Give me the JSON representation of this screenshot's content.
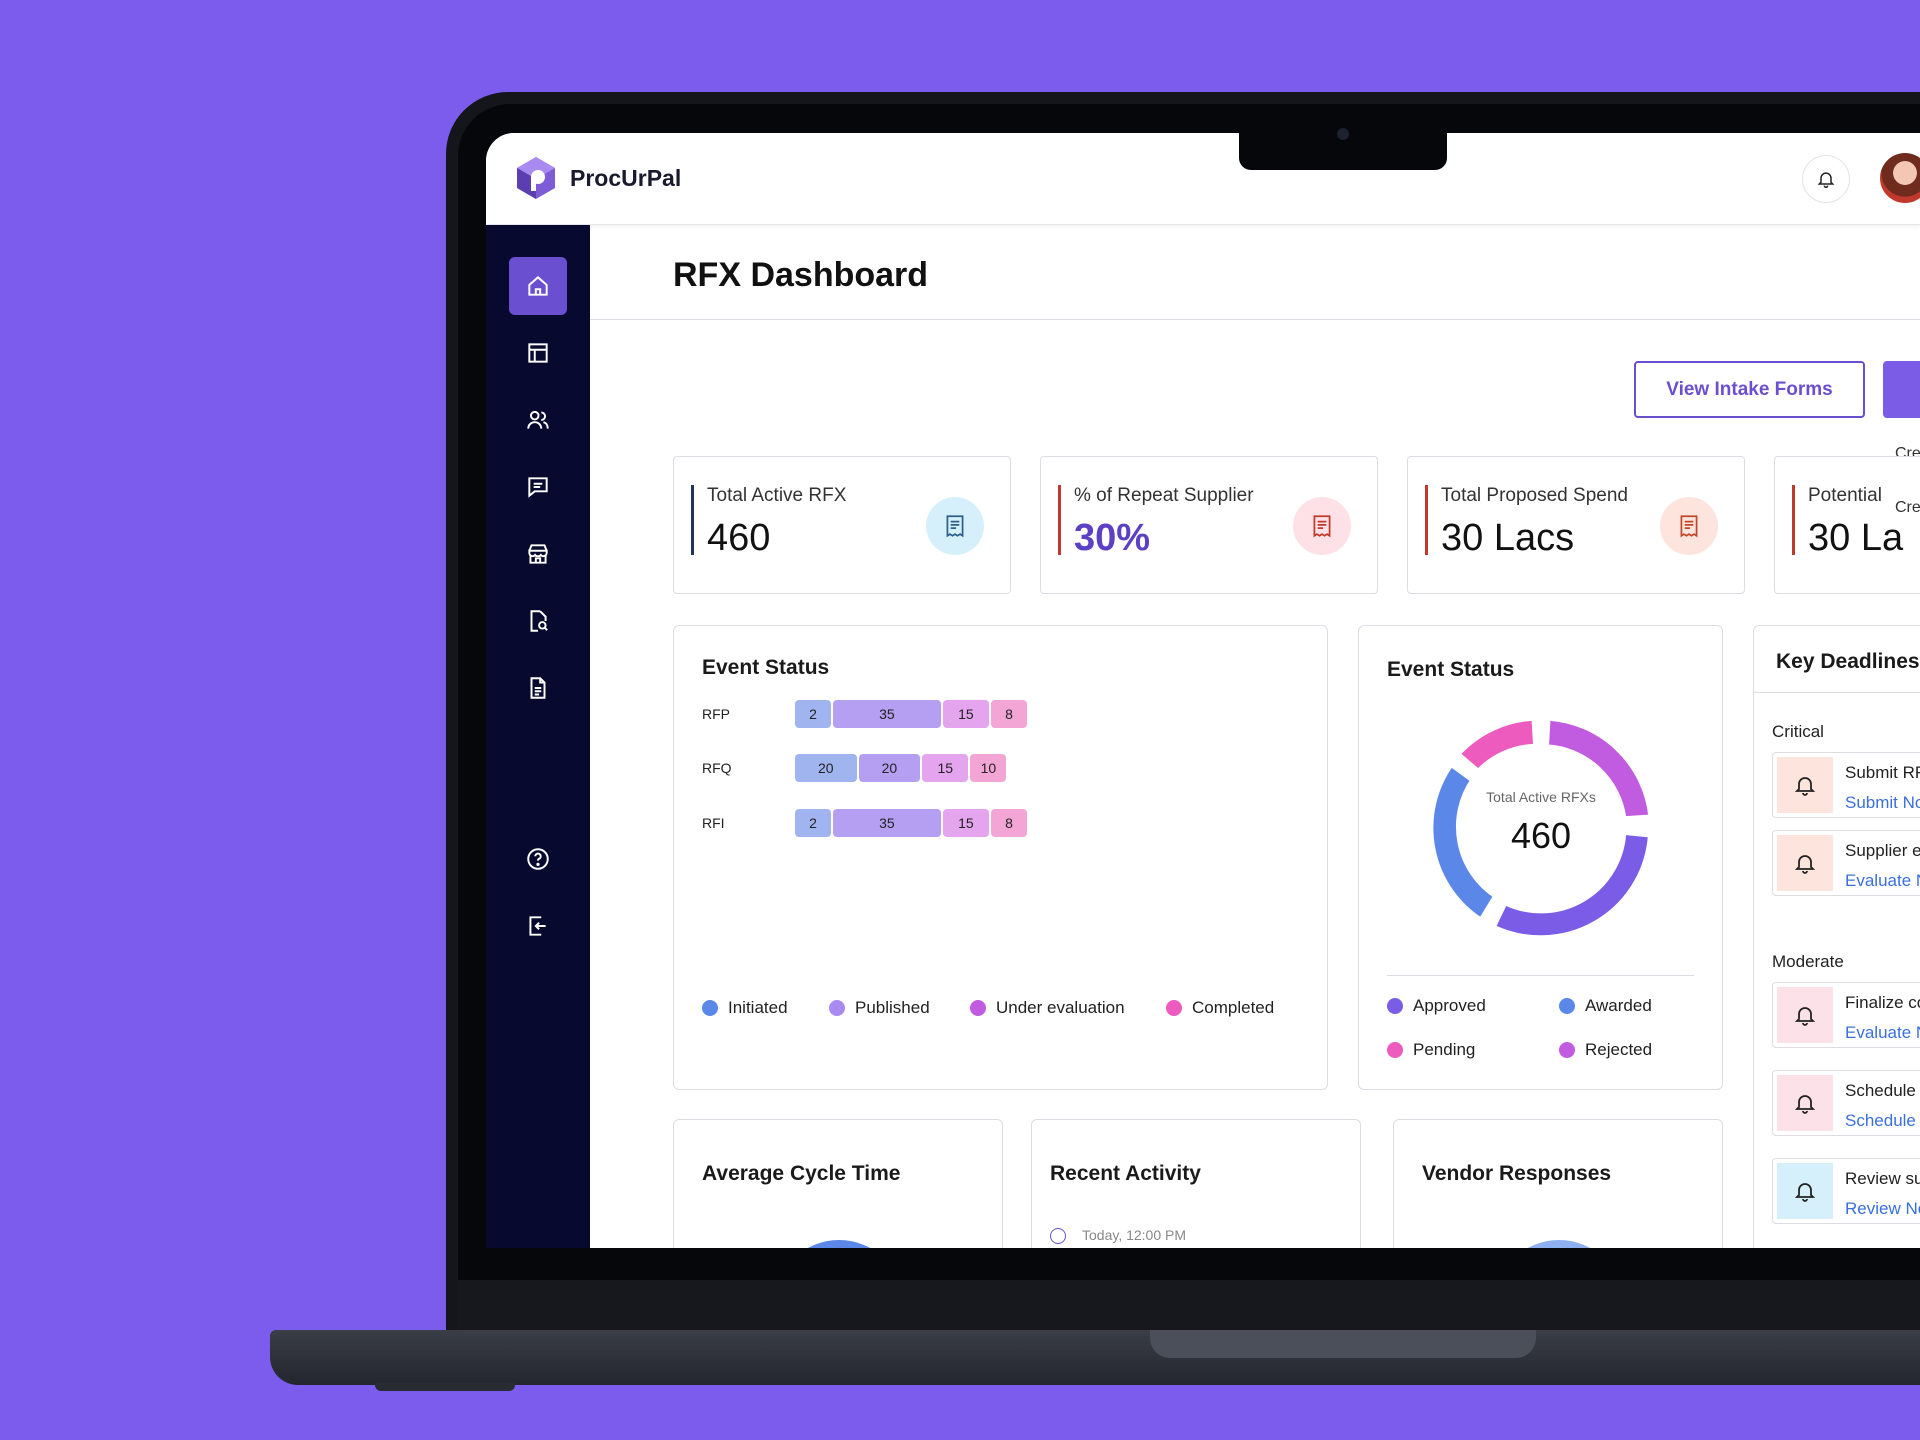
{
  "app": {
    "name": "ProcUrPal"
  },
  "page": {
    "title": "RFX Dashboard"
  },
  "actions": {
    "view_intake": "View Intake Forms",
    "create_hint": "Cre",
    "create_hint2": "Cre"
  },
  "kpis": [
    {
      "label": "Total Active RFX",
      "value": "460",
      "bar_color": "#1d3557",
      "icon_bg": "#d6f0fb",
      "icon_color": "#2b5f8a",
      "value_color": "#111111"
    },
    {
      "label": "% of Repeat Supplier",
      "value": "30%",
      "bar_color": "#c0392b",
      "icon_bg": "#fde1e6",
      "icon_color": "#c0392b",
      "value_color": "#5b3fc4"
    },
    {
      "label": "Total Proposed Spend",
      "value": "30 Lacs",
      "bar_color": "#c0392b",
      "icon_bg": "#fde4dc",
      "icon_color": "#c0492b",
      "value_color": "#111111"
    },
    {
      "label": "Potential",
      "value": "30 La",
      "bar_color": "#c0392b",
      "icon_bg": "#fde4dc",
      "icon_color": "#c0492b",
      "value_color": "#111111"
    }
  ],
  "event_status_bar": {
    "title": "Event Status",
    "rows": [
      {
        "label": "RFP",
        "values": [
          2,
          35,
          15,
          8
        ]
      },
      {
        "label": "RFQ",
        "values": [
          20,
          20,
          15,
          10
        ]
      },
      {
        "label": "RFI",
        "values": [
          2,
          35,
          15,
          8
        ]
      }
    ],
    "legend": [
      "Initiated",
      "Published",
      "Under evaluation",
      "Completed"
    ],
    "colors": [
      "#a0b4f0",
      "#b49ff2",
      "#e5a5ee",
      "#f3a6d6"
    ]
  },
  "event_status_donut": {
    "title": "Event Status",
    "center_label": "Total Active RFXs",
    "center_value": "460",
    "legend": [
      "Approved",
      "Awarded",
      "Pending",
      "Rejected"
    ],
    "legend_colors": [
      "#7b5ce6",
      "#5b88e8",
      "#ee5bbf",
      "#c15be0"
    ]
  },
  "chart_data": {
    "type": "bar",
    "categories": [
      "RFP",
      "RFQ",
      "RFI"
    ],
    "series": [
      {
        "name": "Initiated",
        "values": [
          2,
          20,
          2
        ]
      },
      {
        "name": "Published",
        "values": [
          35,
          20,
          35
        ]
      },
      {
        "name": "Under evaluation",
        "values": [
          15,
          15,
          15
        ]
      },
      {
        "name": "Completed",
        "values": [
          8,
          10,
          8
        ]
      }
    ],
    "orientation": "horizontal-stacked",
    "title": "Event Status",
    "legend_position": "bottom"
  },
  "deadlines": {
    "title": "Key Deadlines",
    "critical_label": "Critical",
    "moderate_label": "Moderate",
    "critical": [
      {
        "title": "Submit RF",
        "link": "Submit No"
      },
      {
        "title": "Supplier e",
        "link": "Evaluate N"
      }
    ],
    "moderate": [
      {
        "title": "Finalize co",
        "link": "Evaluate N",
        "icon_bg": "#fde1e8"
      },
      {
        "title": "Schedule",
        "link": "Schedule",
        "icon_bg": "#fde1e8"
      },
      {
        "title": "Review su",
        "link": "Review No",
        "icon_bg": "#d6f0fb"
      }
    ]
  },
  "bottom_cards": {
    "cycle_time": "Average Cycle Time",
    "recent_activity": "Recent Activity",
    "activity_time": "Today, 12:00 PM",
    "vendor_responses": "Vendor Responses"
  }
}
